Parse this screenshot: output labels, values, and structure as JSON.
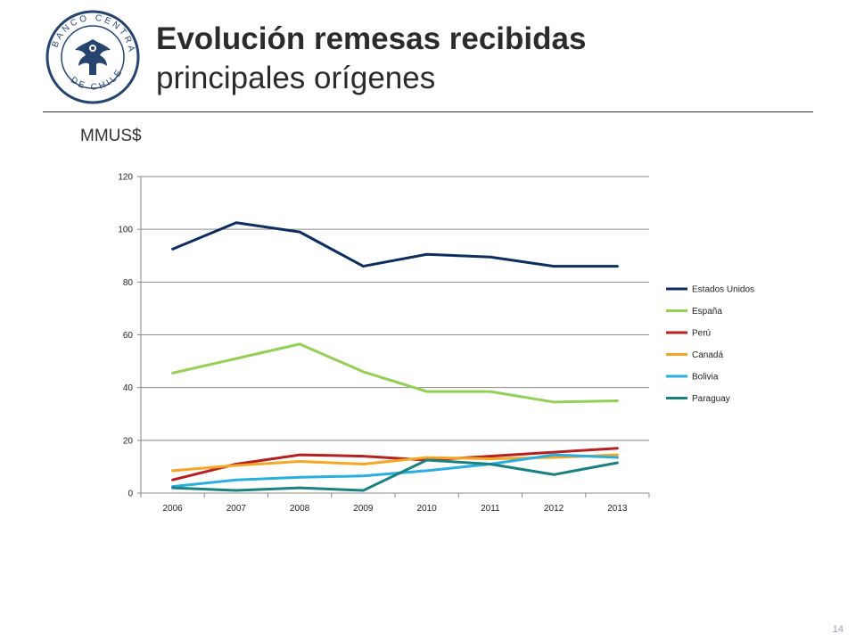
{
  "header": {
    "title": "Evolución remesas recibidas",
    "subtitle": "principales orígenes",
    "logo_text_top": "BANCO CENTRAL",
    "logo_text_bottom": "DE CHILE"
  },
  "unit_label": "MMUS$",
  "page_number": "14",
  "chart_data": {
    "type": "line",
    "categories": [
      "2006",
      "2007",
      "2008",
      "2009",
      "2010",
      "2011",
      "2012",
      "2013"
    ],
    "ylim": [
      0,
      120
    ],
    "yticks": [
      "0",
      "20",
      "40",
      "60",
      "80",
      "100",
      "120"
    ],
    "ytick_values": [
      0,
      20,
      40,
      60,
      80,
      100,
      120
    ],
    "grid": "horizontal",
    "legend_position": "right",
    "series": [
      {
        "name": "Estados Unidos",
        "color": "#0d2d5e",
        "values": [
          92.5,
          102.5,
          99,
          86,
          90.5,
          89.5,
          86,
          86
        ]
      },
      {
        "name": "España",
        "color": "#92cf54",
        "values": [
          45.5,
          51,
          56.5,
          46,
          38.5,
          38.5,
          34.5,
          35
        ]
      },
      {
        "name": "Perú",
        "color": "#b52020",
        "values": [
          5,
          11,
          14.5,
          14,
          12.5,
          14,
          15.5,
          17
        ]
      },
      {
        "name": "Canadá",
        "color": "#f5a623",
        "values": [
          8.5,
          10.5,
          12,
          11,
          13.5,
          13,
          13.5,
          14.5
        ]
      },
      {
        "name": "Bolivia",
        "color": "#2aaee0",
        "values": [
          2.5,
          5,
          6,
          6.5,
          8.5,
          11,
          14.5,
          13.5
        ]
      },
      {
        "name": "Paraguay",
        "color": "#1a8080",
        "values": [
          2,
          1,
          2,
          1,
          12.5,
          11,
          7,
          11.5
        ]
      }
    ]
  }
}
